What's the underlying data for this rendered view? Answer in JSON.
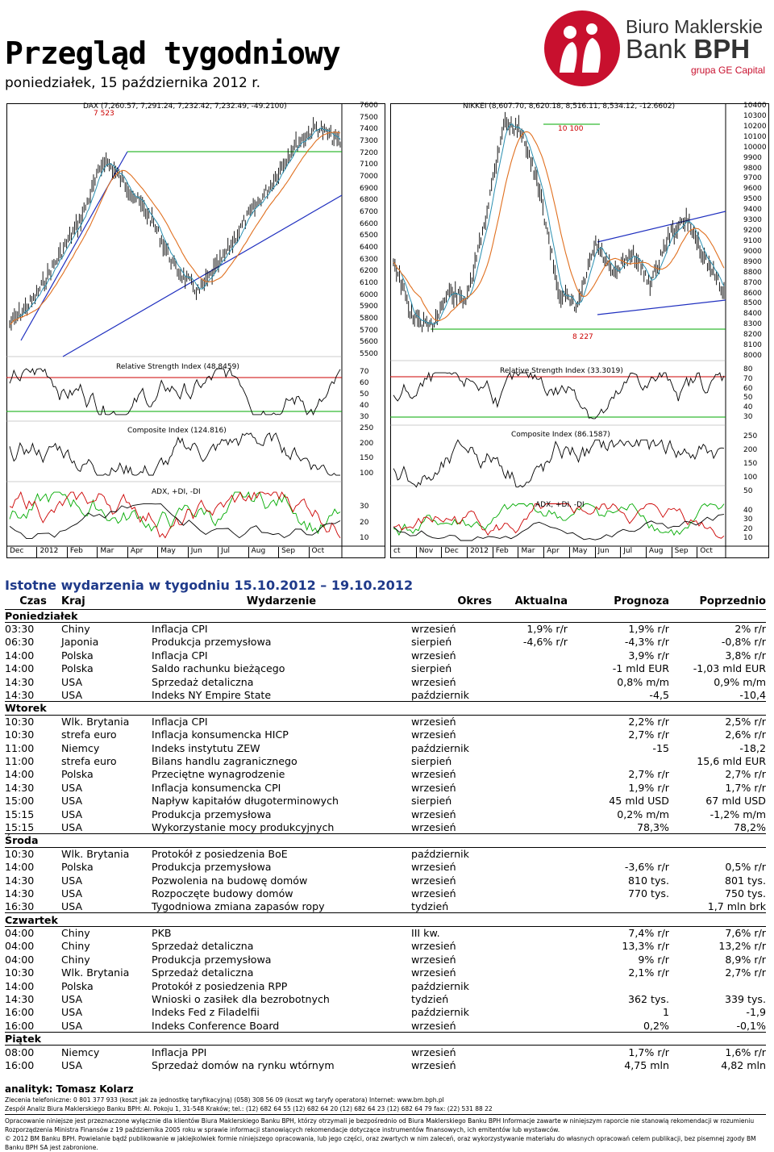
{
  "header": {
    "title": "Przegląd tygodniowy",
    "date": "poniedziałek, 15 października 2012 r."
  },
  "logo": {
    "line1": "Biuro Maklerskie",
    "line2a": "Bank ",
    "line2b": "BPH",
    "line3": "grupa GE Capital"
  },
  "dax": {
    "title": "DAX (7,260.57, 7,291.24, 7,232.42, 7,232.49, -49.2100)",
    "hi_label": "7 523",
    "price_ticks": [
      "7600",
      "7500",
      "7400",
      "7300",
      "7200",
      "7100",
      "7000",
      "6900",
      "6800",
      "6700",
      "6600",
      "6500",
      "6400",
      "6300",
      "6200",
      "6100",
      "6000",
      "5900",
      "5800",
      "5700",
      "5600",
      "5500"
    ],
    "rsi_title": "Relative Strength Index (48.8459)",
    "rsi_ticks": [
      "70",
      "60",
      "50",
      "40",
      "30"
    ],
    "ci_title": "Composite Index (124.816)",
    "ci_ticks": [
      "250",
      "200",
      "150",
      "100"
    ],
    "adx_title": "ADX, +DI, -DI",
    "adx_ticks": [
      "30",
      "20",
      "10"
    ],
    "months": [
      "Dec",
      "2012",
      "Feb",
      "Mar",
      "Apr",
      "May",
      "Jun",
      "Jul",
      "Aug",
      "Sep",
      "Oct"
    ]
  },
  "nikkei": {
    "title": "NIKKEI (8,607.70, 8,620.18, 8,516.11, 8,534.12, -12.6602)",
    "hi_label": "10 100",
    "lo_label": "8 227",
    "price_ticks": [
      "10400",
      "10300",
      "10200",
      "10100",
      "10000",
      "9900",
      "9800",
      "9700",
      "9600",
      "9500",
      "9400",
      "9300",
      "9200",
      "9100",
      "9000",
      "8900",
      "8800",
      "8700",
      "8600",
      "8500",
      "8400",
      "8300",
      "8200",
      "8100",
      "8000"
    ],
    "rsi_title": "Relative Strength Index (33.3019)",
    "rsi_ticks": [
      "80",
      "70",
      "60",
      "50",
      "40",
      "30"
    ],
    "ci_title": "Composite Index (86.1587)",
    "ci_ticks": [
      "250",
      "200",
      "150",
      "100",
      "50"
    ],
    "adx_title": "ADX, +DI, -DI",
    "adx_ticks": [
      "40",
      "30",
      "20",
      "10"
    ],
    "months": [
      "ct",
      "Nov",
      "Dec",
      "2012",
      "Feb",
      "Mar",
      "Apr",
      "May",
      "Jun",
      "Jul",
      "Aug",
      "Sep",
      "Oct"
    ]
  },
  "events": {
    "title": "Istotne wydarzenia w tygodniu 15.10.2012 – 19.10.2012",
    "headers": [
      "Czas",
      "Kraj",
      "Wydarzenie",
      "Okres",
      "Aktualna",
      "Prognoza",
      "Poprzednio"
    ],
    "days": [
      {
        "name": "Poniedziałek",
        "rows": [
          [
            "03:30",
            "Chiny",
            "Inflacja CPI",
            "wrzesień",
            "1,9% r/r",
            "1,9% r/r",
            "2% r/r"
          ],
          [
            "06:30",
            "Japonia",
            "Produkcja przemysłowa",
            "sierpień",
            "-4,6% r/r",
            "-4,3% r/r",
            "-0,8% r/r"
          ],
          [
            "14:00",
            "Polska",
            "Inflacja CPI",
            "wrzesień",
            "",
            "3,9% r/r",
            "3,8% r/r"
          ],
          [
            "14:00",
            "Polska",
            "Saldo rachunku bieżącego",
            "sierpień",
            "",
            "-1 mld EUR",
            "-1,03 mld EUR"
          ],
          [
            "14:30",
            "USA",
            "Sprzedaż detaliczna",
            "wrzesień",
            "",
            "0,8% m/m",
            "0,9% m/m"
          ],
          [
            "14:30",
            "USA",
            "Indeks NY Empire State",
            "październik",
            "",
            "-4,5",
            "-10,4"
          ]
        ]
      },
      {
        "name": "Wtorek",
        "rows": [
          [
            "10:30",
            "Wlk. Brytania",
            "Inflacja CPI",
            "wrzesień",
            "",
            "2,2% r/r",
            "2,5% r/r"
          ],
          [
            "10:30",
            "strefa euro",
            "Inflacja konsumencka HICP",
            "wrzesień",
            "",
            "2,7% r/r",
            "2,6% r/r"
          ],
          [
            "11:00",
            "Niemcy",
            "Indeks instytutu ZEW",
            "październik",
            "",
            "-15",
            "-18,2"
          ],
          [
            "11:00",
            "strefa euro",
            "Bilans handlu zagranicznego",
            "sierpień",
            "",
            "",
            "15,6 mld EUR"
          ],
          [
            "14:00",
            "Polska",
            "Przeciętne wynagrodzenie",
            "wrzesień",
            "",
            "2,7% r/r",
            "2,7% r/r"
          ],
          [
            "14:30",
            "USA",
            "Inflacja konsumencka CPI",
            "wrzesień",
            "",
            "1,9% r/r",
            "1,7% r/r"
          ],
          [
            "15:00",
            "USA",
            "Napływ kapitałów długoterminowych",
            "sierpień",
            "",
            "45 mld USD",
            "67 mld USD"
          ],
          [
            "15:15",
            "USA",
            "Produkcja przemysłowa",
            "wrzesień",
            "",
            "0,2% m/m",
            "-1,2% m/m"
          ],
          [
            "15:15",
            "USA",
            "Wykorzystanie mocy produkcyjnych",
            "wrzesień",
            "",
            "78,3%",
            "78,2%"
          ]
        ]
      },
      {
        "name": "Środa",
        "rows": [
          [
            "10:30",
            "Wlk. Brytania",
            "Protokół z posiedzenia BoE",
            "październik",
            "",
            "",
            ""
          ],
          [
            "14:00",
            "Polska",
            "Produkcja przemysłowa",
            "wrzesień",
            "",
            "-3,6% r/r",
            "0,5% r/r"
          ],
          [
            "14:30",
            "USA",
            "Pozwolenia na budowę domów",
            "wrzesień",
            "",
            "810 tys.",
            "801 tys."
          ],
          [
            "14:30",
            "USA",
            "Rozpoczęte budowy domów",
            "wrzesień",
            "",
            "770 tys.",
            "750 tys."
          ],
          [
            "16:30",
            "USA",
            "Tygodniowa zmiana zapasów ropy",
            "tydzień",
            "",
            "",
            "1,7 mln brk"
          ]
        ]
      },
      {
        "name": "Czwartek",
        "rows": [
          [
            "04:00",
            "Chiny",
            "PKB",
            "III kw.",
            "",
            "7,4% r/r",
            "7,6% r/r"
          ],
          [
            "04:00",
            "Chiny",
            "Sprzedaż detaliczna",
            "wrzesień",
            "",
            "13,3% r/r",
            "13,2% r/r"
          ],
          [
            "04:00",
            "Chiny",
            "Produkcja przemysłowa",
            "wrzesień",
            "",
            "9% r/r",
            "8,9% r/r"
          ],
          [
            "10:30",
            "Wlk. Brytania",
            "Sprzedaż detaliczna",
            "wrzesień",
            "",
            "2,1% r/r",
            "2,7% r/r"
          ],
          [
            "14:00",
            "Polska",
            "Protokół z posiedzenia RPP",
            "październik",
            "",
            "",
            ""
          ],
          [
            "14:30",
            "USA",
            "Wnioski o zasiłek dla bezrobotnych",
            "tydzień",
            "",
            "362 tys.",
            "339 tys."
          ],
          [
            "16:00",
            "USA",
            "Indeks Fed z Filadelfii",
            "październik",
            "",
            "1",
            "-1,9"
          ],
          [
            "16:00",
            "USA",
            "Indeks Conference Board",
            "wrzesień",
            "",
            "0,2%",
            "-0,1%"
          ]
        ]
      },
      {
        "name": "Piątek",
        "rows": [
          [
            "08:00",
            "Niemcy",
            "Inflacja PPI",
            "wrzesień",
            "",
            "1,7% r/r",
            "1,6% r/r"
          ],
          [
            "16:00",
            "USA",
            "Sprzedaż domów na rynku wtórnym",
            "wrzesień",
            "",
            "4,75 mln",
            "4,82 mln"
          ]
        ]
      }
    ]
  },
  "footer": {
    "analyst": "analityk: Tomasz Kolarz",
    "line1": "Zlecenia telefoniczne: 0 801 377 933 (koszt jak za jednostkę taryfikacyjną) (058) 308 56 09 (koszt wg taryfy operatora) Internet: www.bm.bph.pl",
    "line2": "Zespół Analiz Biura Maklerskiego Banku BPH: Al. Pokoju 1, 31-548 Kraków; tel.: (12) 682 64 55 (12) 682 64 20 (12) 682 64 23 (12) 682 64 79 fax: (22) 531 88 22",
    "line3": "Opracowanie niniejsze jest przeznaczone wyłącznie dla klientów Biura Maklerskiego Banku BPH, którzy otrzymali je bezpośrednio od Biura Maklerskiego Banku BPH Informacje zawarte w niniejszym raporcie nie stanowią rekomendacji w rozumieniu",
    "line4": "Rozporządzenia Ministra Finansów z 19 października 2005 roku w sprawie informacji stanowiących rekomendacje dotyczące instrumentów finansowych, ich emitentów lub wystawców.",
    "line5": "© 2012 BM Banku BPH. Powielanie bądź publikowanie w jakiejkolwiek formie niniejszego opracowania, lub jego części, oraz zwartych w nim zaleceń, oraz wykorzystywanie materiału do własnych opracowań celem publikacji, bez pisemnej zgody BM",
    "line6": "Banku BPH SA jest zabronione."
  }
}
